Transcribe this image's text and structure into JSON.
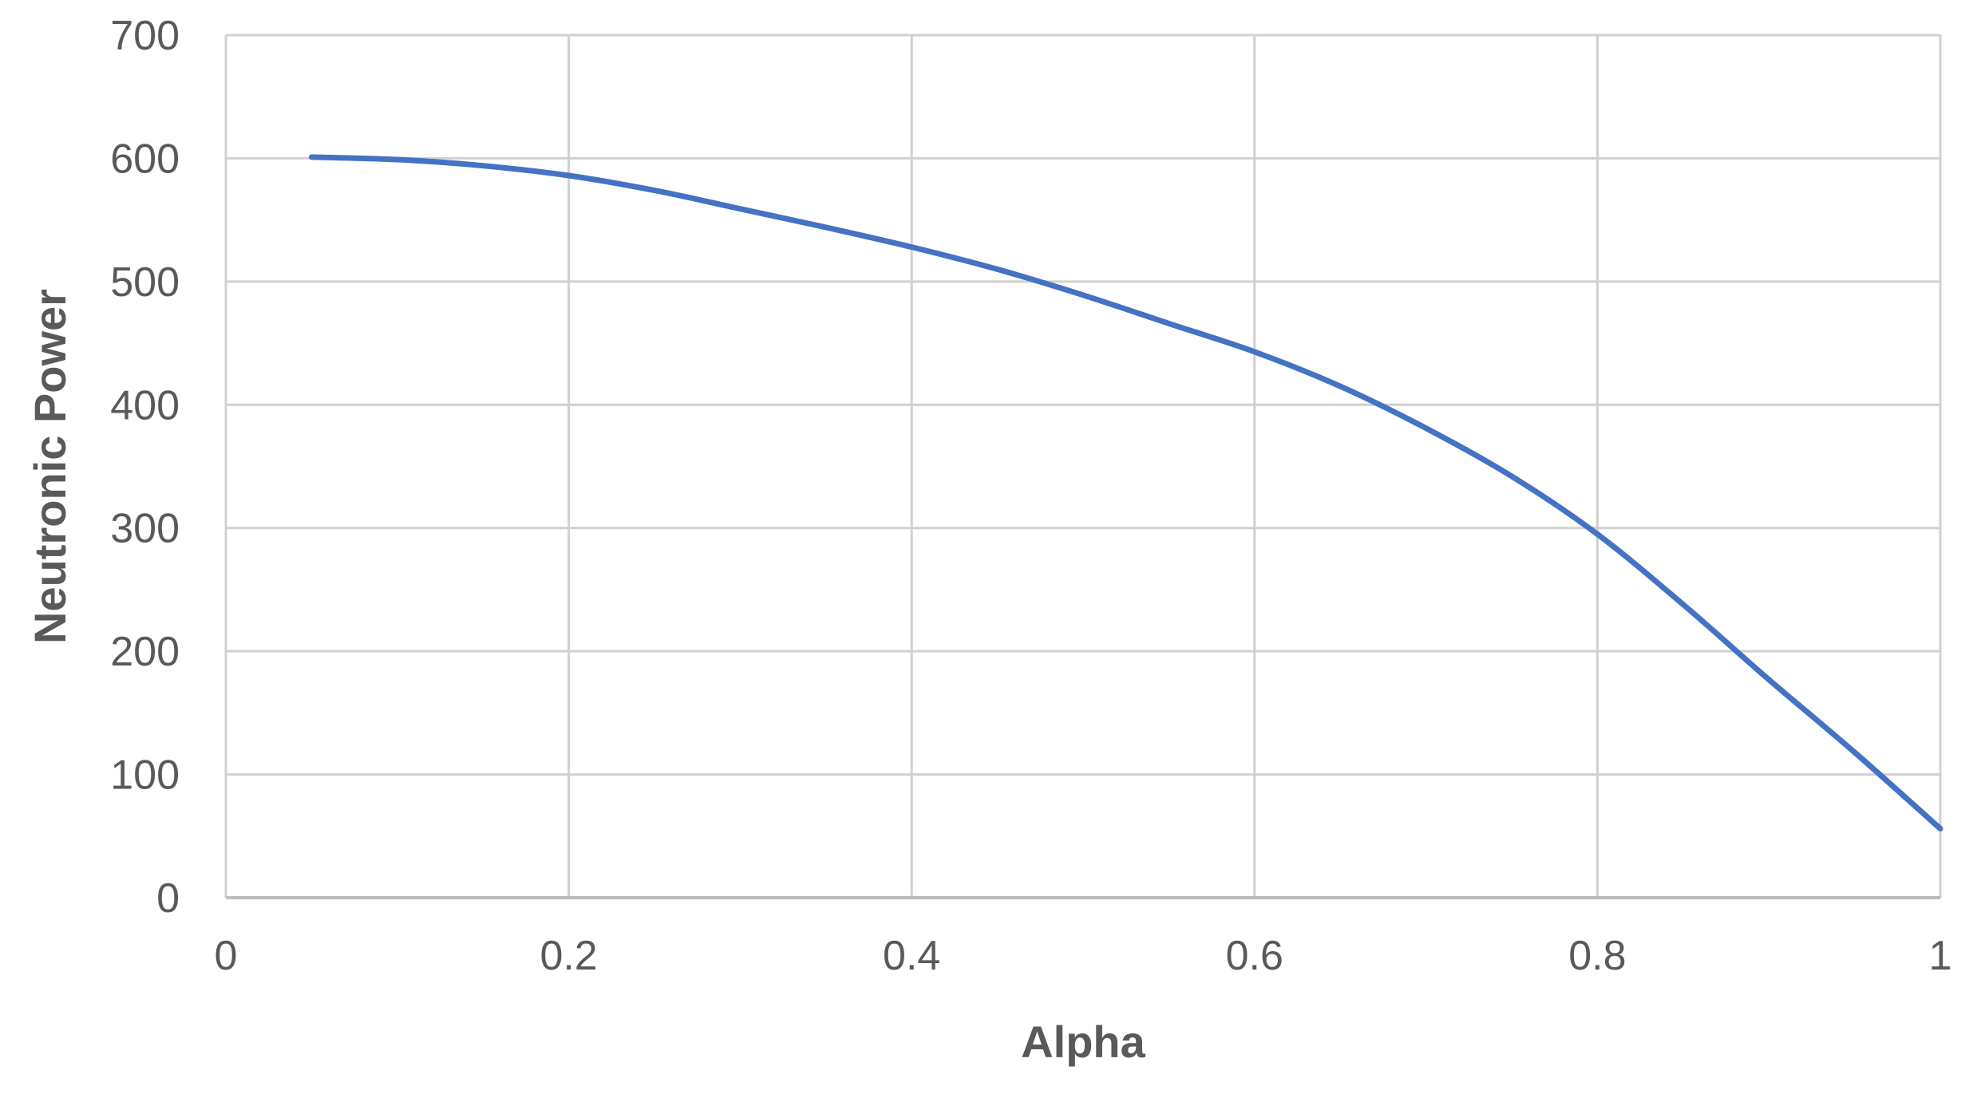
{
  "chart_data": {
    "type": "line",
    "title": "",
    "xlabel": "Alpha",
    "ylabel": "Neutronic Power",
    "xlim": [
      0,
      1
    ],
    "ylim": [
      0,
      700
    ],
    "x_ticks": [
      0,
      0.2,
      0.4,
      0.6,
      0.8,
      1
    ],
    "x_tick_labels": [
      "0",
      "0.2",
      "0.4",
      "0.6",
      "0.8",
      "1"
    ],
    "y_ticks": [
      0,
      100,
      200,
      300,
      400,
      500,
      600,
      700
    ],
    "y_tick_labels": [
      "0",
      "100",
      "200",
      "300",
      "400",
      "500",
      "600",
      "700"
    ],
    "grid": true,
    "legend": "none",
    "series": [
      {
        "color": "#4472C4",
        "x": [
          0.05,
          0.1,
          0.15,
          0.2,
          0.25,
          0.3,
          0.35,
          0.4,
          0.45,
          0.5,
          0.55,
          0.6,
          0.65,
          0.7,
          0.75,
          0.8,
          0.85,
          0.9,
          0.95,
          1.0
        ],
        "y": [
          601,
          599,
          594,
          586,
          574,
          559,
          544,
          528,
          510,
          489,
          466,
          443,
          415,
          381,
          342,
          295,
          238,
          177,
          118,
          56
        ]
      }
    ]
  }
}
